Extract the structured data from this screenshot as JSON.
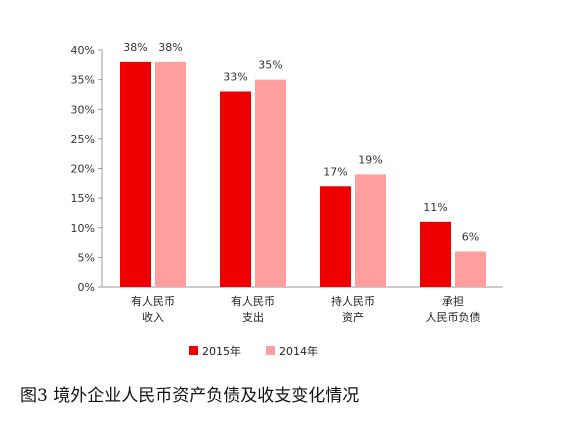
{
  "chart_data": {
    "type": "bar",
    "categories": [
      [
        "有人民币",
        "收入"
      ],
      [
        "有人民币",
        "支出"
      ],
      [
        "持人民币",
        "资产"
      ],
      [
        "承担",
        "人民币负债"
      ]
    ],
    "series": [
      {
        "name": "2015年",
        "values": [
          38,
          33,
          17,
          11
        ],
        "color": "#ee0000"
      },
      {
        "name": "2014年",
        "values": [
          38,
          35,
          19,
          6
        ],
        "color": "#ff9e9e"
      }
    ],
    "data_labels": [
      [
        "38%",
        "33%",
        "17%",
        "11%"
      ],
      [
        "38%",
        "35%",
        "19%",
        "6%"
      ]
    ],
    "y_ticks": [
      "0%",
      "5%",
      "10%",
      "15%",
      "20%",
      "25%",
      "30%",
      "35%",
      "40%"
    ],
    "ylim": [
      0,
      40
    ],
    "unit": "%",
    "grid": false,
    "legend_position": "bottom"
  },
  "caption": "图3 境外企业人民币资产负债及收支变化情况"
}
